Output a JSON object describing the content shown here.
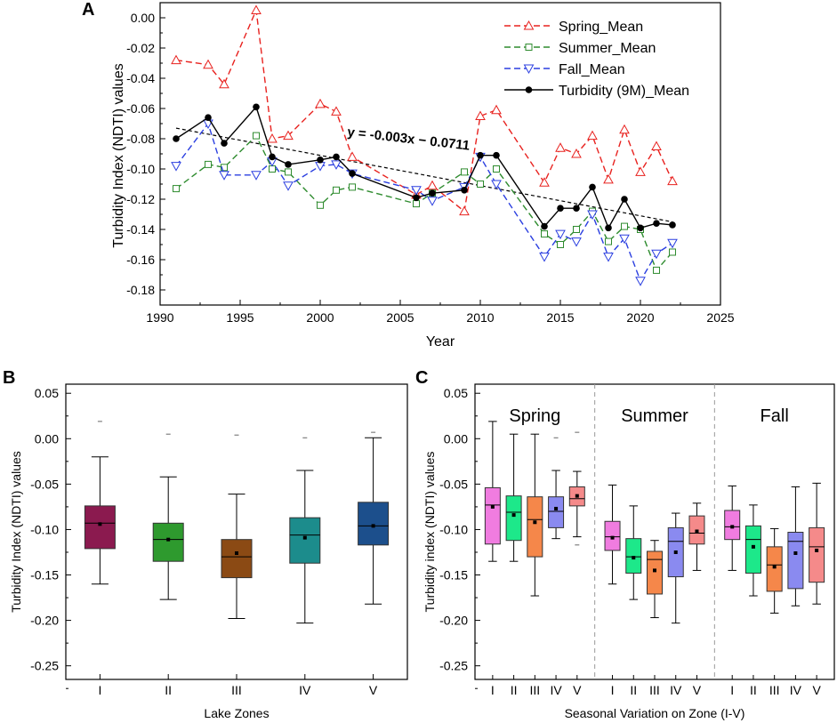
{
  "chart_data": [
    {
      "panel": "A",
      "type": "line",
      "xlabel": "Year",
      "ylabel": "Turbidity Index (NDTI) values",
      "xlim": [
        1990,
        2025
      ],
      "ylim": [
        -0.19,
        0.01
      ],
      "xticks": [
        "1990",
        "1995",
        "2000",
        "2005",
        "2010",
        "2015",
        "2020",
        "2025"
      ],
      "yticks": [
        "0.00",
        "-0.02",
        "-0.04",
        "-0.06",
        "-0.08",
        "-0.10",
        "-0.12",
        "-0.14",
        "-0.16",
        "-0.18"
      ],
      "trendline": {
        "label": "y = -0.003x − 0.0711",
        "from": [
          1991,
          -0.073
        ],
        "to": [
          2022,
          -0.135
        ]
      },
      "series": [
        {
          "name": "Spring_Mean",
          "color": "#e8221f",
          "marker": "triangle-up",
          "dash": true,
          "x": [
            1991,
            1993,
            1994,
            1996,
            1997,
            1998,
            2000,
            2001,
            2002,
            2006,
            2007,
            2009,
            2010,
            2011,
            2014,
            2015,
            2016,
            2017,
            2018,
            2019,
            2020,
            2021,
            2022
          ],
          "y": [
            -0.028,
            -0.031,
            -0.044,
            0.005,
            -0.08,
            -0.078,
            -0.057,
            -0.062,
            -0.092,
            -0.117,
            -0.111,
            -0.128,
            -0.065,
            -0.061,
            -0.109,
            -0.086,
            -0.09,
            -0.078,
            -0.107,
            -0.074,
            -0.102,
            -0.085,
            -0.108
          ]
        },
        {
          "name": "Summer_Mean",
          "color": "#2e8b2e",
          "marker": "square",
          "dash": true,
          "x": [
            1991,
            1993,
            1994,
            1996,
            1997,
            1998,
            2000,
            2001,
            2002,
            2006,
            2007,
            2009,
            2010,
            2011,
            2014,
            2015,
            2016,
            2017,
            2018,
            2019,
            2020,
            2021,
            2022
          ],
          "y": [
            -0.113,
            -0.097,
            -0.099,
            -0.078,
            -0.1,
            -0.102,
            -0.124,
            -0.114,
            -0.112,
            -0.123,
            -0.116,
            -0.102,
            -0.11,
            -0.1,
            -0.143,
            -0.15,
            -0.14,
            -0.128,
            -0.148,
            -0.138,
            -0.14,
            -0.167,
            -0.155
          ]
        },
        {
          "name": "Fall_Mean",
          "color": "#2b3fe0",
          "marker": "triangle-down",
          "dash": true,
          "x": [
            1991,
            1993,
            1994,
            1996,
            1997,
            1998,
            2000,
            2001,
            2002,
            2006,
            2007,
            2009,
            2010,
            2011,
            2014,
            2015,
            2016,
            2017,
            2018,
            2019,
            2020,
            2021,
            2022
          ],
          "y": [
            -0.098,
            -0.07,
            -0.104,
            -0.104,
            -0.095,
            -0.111,
            -0.098,
            -0.097,
            -0.103,
            -0.114,
            -0.121,
            -0.112,
            -0.092,
            -0.11,
            -0.158,
            -0.143,
            -0.148,
            -0.13,
            -0.158,
            -0.146,
            -0.174,
            -0.156,
            -0.149
          ]
        },
        {
          "name": "Turbidity (9M)_Mean",
          "color": "#000000",
          "marker": "circle",
          "dash": false,
          "x": [
            1991,
            1993,
            1994,
            1996,
            1997,
            1998,
            2000,
            2001,
            2002,
            2006,
            2007,
            2009,
            2010,
            2011,
            2014,
            2015,
            2016,
            2017,
            2018,
            2019,
            2020,
            2021,
            2022
          ],
          "y": [
            -0.08,
            -0.066,
            -0.083,
            -0.059,
            -0.092,
            -0.097,
            -0.094,
            -0.092,
            -0.103,
            -0.119,
            -0.116,
            -0.114,
            -0.091,
            -0.091,
            -0.138,
            -0.126,
            -0.126,
            -0.112,
            -0.139,
            -0.12,
            -0.139,
            -0.136,
            -0.137
          ]
        }
      ]
    },
    {
      "panel": "B",
      "type": "box",
      "xlabel": "Lake Zones",
      "ylabel": "Turbidity Index (NDTI) values",
      "ylim": [
        -0.265,
        0.06
      ],
      "yticks": [
        "0.05",
        "0.00",
        "-0.05",
        "-0.10",
        "-0.15",
        "-0.20",
        "-0.25"
      ],
      "categories": [
        "I",
        "II",
        "III",
        "IV",
        "V"
      ],
      "boxes": [
        {
          "label": "I",
          "color": "#8b1a4f",
          "whisker_low": -0.16,
          "q1": -0.121,
          "median": -0.093,
          "q3": -0.074,
          "whisker_high": -0.02,
          "mean": -0.094,
          "outliers": [
            0.019
          ]
        },
        {
          "label": "II",
          "color": "#2e9a2e",
          "whisker_low": -0.177,
          "q1": -0.135,
          "median": -0.111,
          "q3": -0.093,
          "whisker_high": -0.042,
          "mean": -0.111,
          "outliers": [
            0.005
          ]
        },
        {
          "label": "III",
          "color": "#8b4a14",
          "whisker_low": -0.198,
          "q1": -0.153,
          "median": -0.13,
          "q3": -0.111,
          "whisker_high": -0.061,
          "mean": -0.126,
          "outliers": [
            0.004
          ]
        },
        {
          "label": "IV",
          "color": "#1c8c8c",
          "whisker_low": -0.203,
          "q1": -0.137,
          "median": -0.106,
          "q3": -0.087,
          "whisker_high": -0.035,
          "mean": -0.109,
          "outliers": [
            0.001
          ]
        },
        {
          "label": "V",
          "color": "#1c4f8c",
          "whisker_low": -0.182,
          "q1": -0.117,
          "median": -0.096,
          "q3": -0.07,
          "whisker_high": 0.001,
          "mean": -0.096,
          "outliers": [
            0.007
          ]
        }
      ]
    },
    {
      "panel": "C",
      "type": "box",
      "xlabel": "Seasonal Variation on Zone (I-V)",
      "ylabel": "Turbidity index (NDTI) values",
      "ylim": [
        -0.265,
        0.06
      ],
      "yticks": [
        "0.05",
        "0.00",
        "-0.05",
        "-0.10",
        "-0.15",
        "-0.20",
        "-0.25"
      ],
      "categories": [
        "I",
        "II",
        "III",
        "IV",
        "V"
      ],
      "zone_colors": [
        "#f07ce0",
        "#1de88a",
        "#f5874a",
        "#8a8af0",
        "#f58a8a"
      ],
      "groups": [
        {
          "season": "Spring",
          "boxes": [
            {
              "label": "I",
              "whisker_low": -0.135,
              "q1": -0.116,
              "median": -0.073,
              "q3": -0.054,
              "whisker_high": 0.019,
              "mean": -0.075
            },
            {
              "label": "II",
              "whisker_low": -0.135,
              "q1": -0.112,
              "median": -0.081,
              "q3": -0.063,
              "whisker_high": 0.005,
              "mean": -0.084
            },
            {
              "label": "III",
              "whisker_low": -0.173,
              "q1": -0.13,
              "median": -0.089,
              "q3": -0.064,
              "whisker_high": 0.005,
              "mean": -0.092
            },
            {
              "label": "IV",
              "whisker_low": -0.11,
              "q1": -0.098,
              "median": -0.08,
              "q3": -0.064,
              "whisker_high": -0.035,
              "mean": -0.077,
              "outliers": [
                0.001
              ]
            },
            {
              "label": "V",
              "whisker_low": -0.108,
              "q1": -0.074,
              "median": -0.066,
              "q3": -0.053,
              "whisker_high": -0.036,
              "mean": -0.063,
              "outliers": [
                -0.117,
                0.007
              ]
            }
          ]
        },
        {
          "season": "Summer",
          "boxes": [
            {
              "label": "I",
              "whisker_low": -0.16,
              "q1": -0.123,
              "median": -0.108,
              "q3": -0.091,
              "whisker_high": -0.051,
              "mean": -0.109
            },
            {
              "label": "II",
              "whisker_low": -0.177,
              "q1": -0.148,
              "median": -0.13,
              "q3": -0.11,
              "whisker_high": -0.074,
              "mean": -0.131
            },
            {
              "label": "III",
              "whisker_low": -0.197,
              "q1": -0.171,
              "median": -0.133,
              "q3": -0.124,
              "whisker_high": -0.112,
              "mean": -0.145
            },
            {
              "label": "IV",
              "whisker_low": -0.203,
              "q1": -0.152,
              "median": -0.113,
              "q3": -0.098,
              "whisker_high": -0.082,
              "mean": -0.125
            },
            {
              "label": "V",
              "whisker_low": -0.145,
              "q1": -0.116,
              "median": -0.104,
              "q3": -0.085,
              "whisker_high": -0.071,
              "mean": -0.102
            }
          ]
        },
        {
          "season": "Fall",
          "boxes": [
            {
              "label": "I",
              "whisker_low": -0.145,
              "q1": -0.111,
              "median": -0.097,
              "q3": -0.079,
              "whisker_high": -0.052,
              "mean": -0.097
            },
            {
              "label": "II",
              "whisker_low": -0.173,
              "q1": -0.148,
              "median": -0.111,
              "q3": -0.096,
              "whisker_high": -0.073,
              "mean": -0.119
            },
            {
              "label": "III",
              "whisker_low": -0.192,
              "q1": -0.168,
              "median": -0.139,
              "q3": -0.119,
              "whisker_high": -0.099,
              "mean": -0.141
            },
            {
              "label": "IV",
              "whisker_low": -0.184,
              "q1": -0.165,
              "median": -0.113,
              "q3": -0.103,
              "whisker_high": -0.053,
              "mean": -0.126
            },
            {
              "label": "V",
              "whisker_low": -0.182,
              "q1": -0.158,
              "median": -0.119,
              "q3": -0.098,
              "whisker_high": -0.049,
              "mean": -0.123
            }
          ]
        }
      ]
    }
  ]
}
